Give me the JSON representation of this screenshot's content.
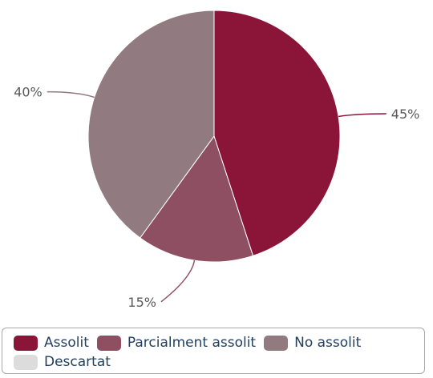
{
  "chart_data": {
    "type": "pie",
    "title": "",
    "slices": [
      {
        "label": "Assolit",
        "value": 45,
        "display": "45%",
        "color": "#8a1538"
      },
      {
        "label": "Parcialment assolit",
        "value": 15,
        "display": "15%",
        "color": "#8f4f62"
      },
      {
        "label": "No assolit",
        "value": 40,
        "display": "40%",
        "color": "#927b80"
      },
      {
        "label": "Descartat",
        "value": 0,
        "display": "",
        "color": "#dcdcdc"
      }
    ],
    "legend_position": "bottom",
    "label_color": "#595959"
  }
}
